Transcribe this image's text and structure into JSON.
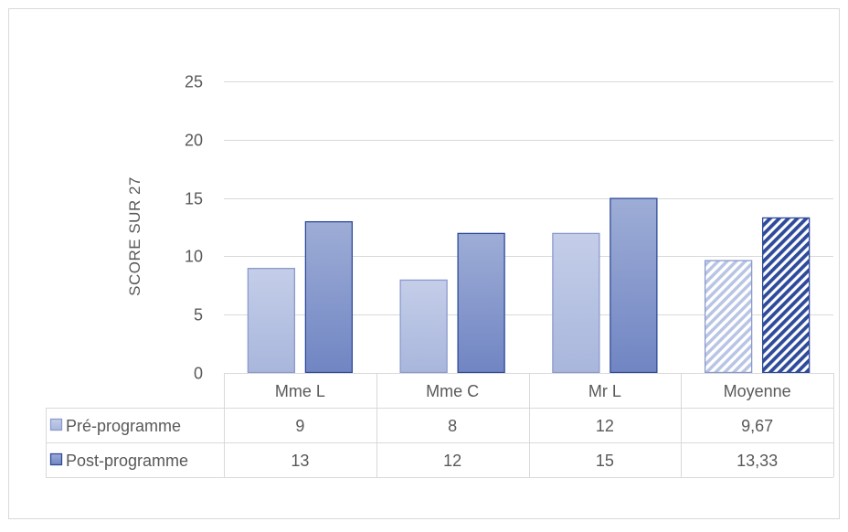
{
  "chart_data": {
    "type": "bar",
    "title": "",
    "xlabel": "",
    "ylabel": "SCORE SUR 27",
    "ylim": [
      0,
      25
    ],
    "yticks": [
      0,
      5,
      10,
      15,
      20,
      25
    ],
    "grid": true,
    "legend": "data-table-left",
    "categories": [
      "Mme L",
      "Mme C",
      "Mr L",
      "Moyenne"
    ],
    "series": [
      {
        "name": "Pré-programme",
        "values": [
          9,
          8,
          12,
          9.67
        ],
        "labels": [
          "9",
          "8",
          "12",
          "9,67"
        ],
        "color": "#b4c0e0",
        "border": "#8a9acc"
      },
      {
        "name": "Post-programme",
        "values": [
          13,
          12,
          15,
          13.33
        ],
        "labels": [
          "13",
          "12",
          "15",
          "13,33"
        ],
        "color": "#8497c9",
        "border": "#2f4a9a"
      }
    ],
    "hatched_category": "Moyenne"
  }
}
